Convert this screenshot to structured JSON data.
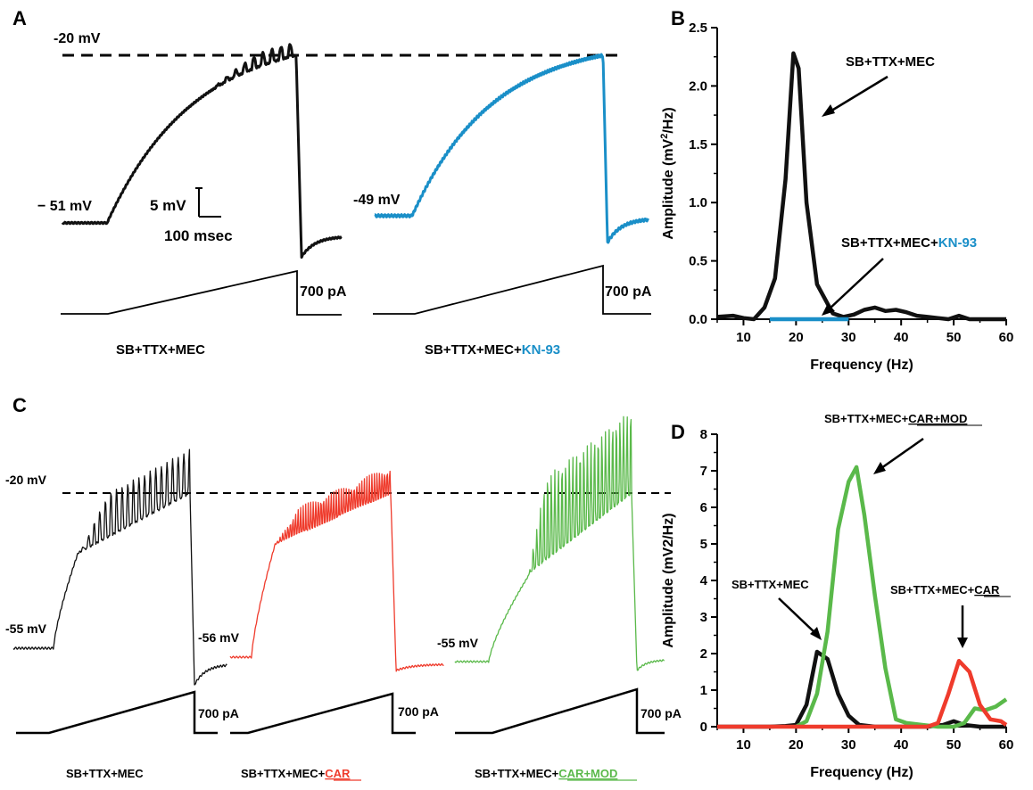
{
  "colors": {
    "black": "#111111",
    "blue": "#1a8fc8",
    "red": "#ef3b2c",
    "green": "#5ab94a",
    "axis": "#000000"
  },
  "panels": {
    "A": {
      "label": "A",
      "threshold_label": "-20 mV",
      "trace1_rest": "− 51 mV",
      "trace2_rest": "-49 mV",
      "scale_v": "5 mV",
      "scale_t": "100 msec",
      "ramp1_label": "700 pA",
      "ramp2_label": "700 pA",
      "cond1": "SB+TTX+MEC",
      "cond2_prefix": "SB+TTX+MEC+",
      "cond2_drug": "KN-93"
    },
    "B": {
      "label": "B",
      "ann1": "SB+TTX+MEC",
      "ann2_prefix": "SB+TTX+MEC+",
      "ann2_drug": "KN-93"
    },
    "C": {
      "label": "C",
      "threshold_label": "-20 mV",
      "trace1_rest": "-55 mV",
      "trace2_rest": "-56 mV",
      "trace3_rest": "-55 mV",
      "ramp1_label": "700 pA",
      "ramp2_label": "700 pA",
      "ramp3_label": "700 pA",
      "cond1": "SB+TTX+MEC",
      "cond2_prefix": "SB+TTX+MEC+",
      "cond2_drug": "CAR",
      "cond3_prefix": "SB+TTX+MEC+",
      "cond3_drug": "CAR+MOD"
    },
    "D": {
      "label": "D",
      "ann_green_prefix": "SB+TTX+MEC+",
      "ann_green_drug": "CAR+MOD",
      "ann_black": "SB+TTX+MEC",
      "ann_red_prefix": "SB+TTX+MEC+",
      "ann_red_drug": "CAR"
    }
  },
  "chart_data": [
    {
      "id": "B",
      "type": "line",
      "title": "",
      "xlabel": "Frequency (Hz)",
      "ylabel": "Amplitude (mV²/Hz)",
      "ylabel_main": "Amplitude (mV",
      "ylabel_sup": "2",
      "ylabel_end": "/Hz)",
      "xlim": [
        5,
        60
      ],
      "ylim": [
        0,
        2.5
      ],
      "xticks": [
        10,
        20,
        30,
        40,
        50,
        60
      ],
      "yticks": [
        0.0,
        0.5,
        1.0,
        1.5,
        2.0,
        2.5
      ],
      "ytick_labels": [
        "0.0",
        "0.5",
        "1.0",
        "1.5",
        "2.0",
        "2.5"
      ],
      "series": [
        {
          "name": "SB+TTX+MEC",
          "color": "#111111",
          "x": [
            5,
            8,
            10,
            12,
            14,
            16,
            18,
            19.5,
            20.5,
            22,
            24,
            27,
            29,
            31,
            33,
            35,
            37,
            39,
            41,
            43,
            45,
            47,
            49,
            51,
            53,
            55,
            57,
            59,
            60
          ],
          "y": [
            0.02,
            0.03,
            0.01,
            0.0,
            0.1,
            0.35,
            1.2,
            2.28,
            2.15,
            1.0,
            0.3,
            0.05,
            0.02,
            0.04,
            0.08,
            0.1,
            0.07,
            0.08,
            0.06,
            0.03,
            0.02,
            0.01,
            0.0,
            0.03,
            0.0,
            0.0,
            0.0,
            0.0,
            0.0
          ]
        },
        {
          "name": "SB+TTX+MEC+KN-93",
          "color": "#1a8fc8",
          "x": [
            15,
            18,
            20,
            22,
            24,
            26,
            28,
            30
          ],
          "y": [
            0.0,
            0.0,
            0.0,
            0.0,
            0.0,
            0.0,
            0.0,
            0.0
          ]
        }
      ]
    },
    {
      "id": "D",
      "type": "line",
      "title": "",
      "xlabel": "Frequency (Hz)",
      "ylabel": "Amplitude (mV2/Hz)",
      "xlim": [
        5,
        60
      ],
      "ylim": [
        0,
        8
      ],
      "xticks": [
        10,
        20,
        30,
        40,
        50,
        60
      ],
      "yticks": [
        0,
        1,
        2,
        3,
        4,
        5,
        6,
        7,
        8
      ],
      "ytick_labels": [
        "0",
        "1",
        "2",
        "3",
        "4",
        "5",
        "6",
        "7",
        "8"
      ],
      "series": [
        {
          "name": "SB+TTX+MEC",
          "color": "#111111",
          "x": [
            5,
            10,
            15,
            18,
            20,
            22,
            24,
            26,
            28,
            30,
            32,
            35,
            40,
            45,
            48,
            50,
            52,
            55,
            58,
            60
          ],
          "y": [
            0.0,
            0.0,
            0.0,
            0.02,
            0.05,
            0.6,
            2.05,
            1.85,
            0.9,
            0.3,
            0.05,
            0.0,
            0.0,
            0.0,
            0.05,
            0.15,
            0.05,
            0.0,
            0.0,
            0.0
          ]
        },
        {
          "name": "SB+TTX+MEC+CAR+MOD",
          "color": "#5ab94a",
          "x": [
            20,
            22,
            24,
            26,
            28,
            30,
            31.5,
            33,
            35,
            37,
            39,
            41,
            44,
            47,
            50,
            52,
            54,
            56,
            58,
            60
          ],
          "y": [
            0.0,
            0.15,
            0.9,
            2.6,
            5.4,
            6.7,
            7.1,
            5.8,
            3.6,
            1.6,
            0.2,
            0.1,
            0.05,
            0.0,
            0.0,
            0.1,
            0.5,
            0.45,
            0.55,
            0.75
          ]
        },
        {
          "name": "SB+TTX+MEC+CAR",
          "color": "#ef3b2c",
          "x": [
            5,
            10,
            20,
            30,
            40,
            45,
            47,
            49,
            51,
            53,
            55,
            57,
            59,
            60
          ],
          "y": [
            0.0,
            0.0,
            0.0,
            0.0,
            0.0,
            0.0,
            0.1,
            0.9,
            1.8,
            1.5,
            0.6,
            0.2,
            0.15,
            0.05
          ]
        }
      ]
    }
  ]
}
